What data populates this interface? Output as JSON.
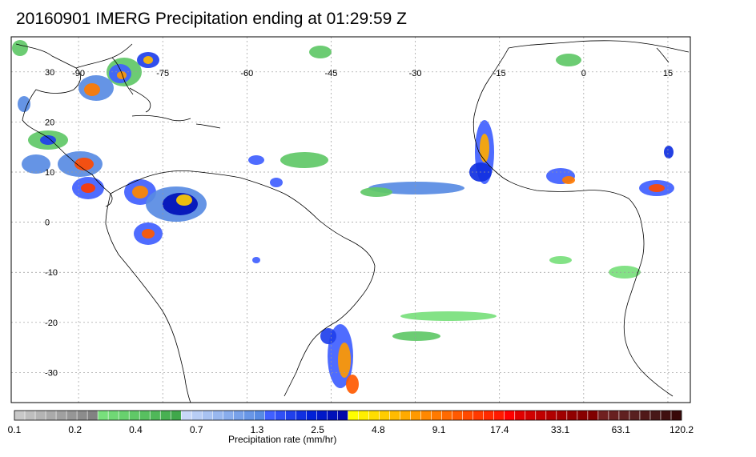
{
  "title": "20160901 IMERG Precipitation ending at 01:29:59 Z",
  "map": {
    "lon_labels": [
      "-90",
      "-75",
      "-60",
      "-45",
      "-30",
      "-15",
      "0",
      "15"
    ],
    "lon_values": [
      -90,
      -75,
      -60,
      -45,
      -30,
      -15,
      0,
      15
    ],
    "lat_labels": [
      "30",
      "20",
      "10",
      "0",
      "-10",
      "-20",
      "-30"
    ],
    "lat_values": [
      30,
      20,
      10,
      0,
      -10,
      -20,
      -30
    ],
    "lon_range": [
      -102,
      19
    ],
    "lat_range": [
      37,
      -36
    ],
    "grid": true,
    "colors": {
      "coast": "#000000",
      "grid": "#999999",
      "frame": "#000000"
    }
  },
  "colorbar": {
    "title": "Precipitation rate (mm/hr)",
    "tick_labels": [
      "0.1",
      "0.2",
      "0.4",
      "0.7",
      "1.3",
      "2.5",
      "4.8",
      "9.1",
      "17.4",
      "33.1",
      "63.1",
      "120.2"
    ],
    "colors": [
      "#c8c8c8",
      "#bebebe",
      "#b4b4b4",
      "#aaaaaa",
      "#a0a0a0",
      "#969696",
      "#8c8c8c",
      "#828282",
      "#78e07c",
      "#70d875",
      "#68d06e",
      "#60c867",
      "#58c060",
      "#50b859",
      "#48b052",
      "#40a84b",
      "#c8d8f8",
      "#b8cdf5",
      "#a8c2f2",
      "#98b7ef",
      "#88acec",
      "#78a1e9",
      "#6896e6",
      "#588be3",
      "#4060ff",
      "#3050f5",
      "#2040eb",
      "#1030e1",
      "#0020d7",
      "#0018c8",
      "#0010b9",
      "#0008aa",
      "#ffff00",
      "#ffee00",
      "#ffdd00",
      "#ffcc00",
      "#ffbb00",
      "#ffaa00",
      "#ff9900",
      "#ff8800",
      "#ff7a00",
      "#ff6a00",
      "#ff5a00",
      "#ff4a00",
      "#ff3a00",
      "#ff2a00",
      "#ff1a00",
      "#ff0000",
      "#e00000",
      "#d00000",
      "#c00000",
      "#b00000",
      "#a00000",
      "#900000",
      "#880000",
      "#800000",
      "#702020",
      "#682020",
      "#602020",
      "#582020",
      "#501818",
      "#481818",
      "#401010",
      "#380808"
    ]
  }
}
